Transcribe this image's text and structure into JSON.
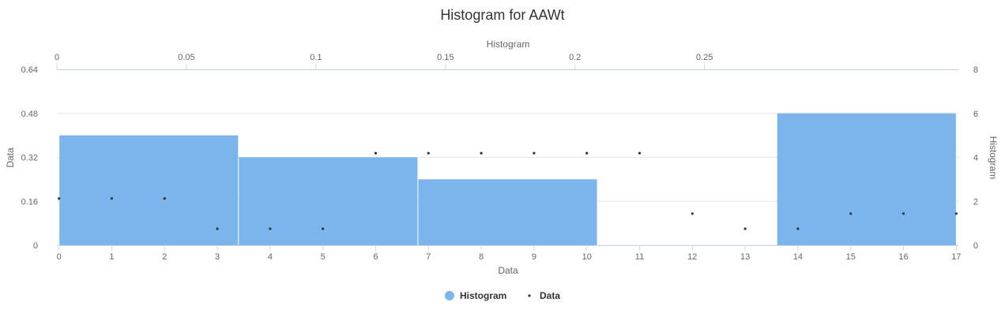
{
  "chart_data": {
    "type": "histogram",
    "title": "Histogram for AAWt",
    "legend": {
      "position": "bottom-center",
      "items": [
        {
          "name": "Histogram",
          "color": "#7cb5ec",
          "symbol": "circle"
        },
        {
          "name": "Data",
          "color": "#333333",
          "symbol": "dot"
        }
      ]
    },
    "axes": {
      "x_bottom": {
        "label": "Data",
        "range": [
          -0.04,
          17.04
        ],
        "ticks": [
          "0",
          "1",
          "2",
          "3",
          "4",
          "5",
          "6",
          "7",
          "8",
          "9",
          "10",
          "11",
          "12",
          "13",
          "14",
          "15",
          "16",
          "17"
        ]
      },
      "x_top": {
        "label": "Histogram",
        "range": [
          0,
          0.348
        ],
        "ticks": [
          "0",
          "0.05",
          "0.1",
          "0.15",
          "0.2",
          "0.25"
        ]
      },
      "y_left": {
        "label": "Data",
        "range": [
          0,
          0.64
        ],
        "ticks": [
          "0",
          "0.16",
          "0.32",
          "0.48",
          "0.64"
        ]
      },
      "y_right": {
        "label": "Histogram",
        "range": [
          0,
          8
        ],
        "ticks": [
          "0",
          "2",
          "4",
          "6",
          "8"
        ]
      }
    },
    "grid": true,
    "series": [
      {
        "name": "Histogram",
        "type": "column",
        "color": "#7cb5ec",
        "x_axis": "x_bottom",
        "y_axis": "y_right",
        "bins": [
          {
            "x0": 0.0,
            "x1": 3.4,
            "count": 5
          },
          {
            "x0": 3.4,
            "x1": 6.8,
            "count": 4
          },
          {
            "x0": 6.8,
            "x1": 10.2,
            "count": 3
          },
          {
            "x0": 10.2,
            "x1": 13.6,
            "count": 0
          },
          {
            "x0": 13.6,
            "x1": 17.0,
            "count": 6
          }
        ]
      },
      {
        "name": "Data",
        "type": "scatter",
        "color": "#333333",
        "x_axis": "x_bottom",
        "y_axis": "y_left",
        "points": [
          [
            0,
            0.17
          ],
          [
            1,
            0.17
          ],
          [
            2,
            0.17
          ],
          [
            3,
            0.06
          ],
          [
            4,
            0.06
          ],
          [
            5,
            0.06
          ],
          [
            6,
            0.335
          ],
          [
            7,
            0.335
          ],
          [
            8,
            0.335
          ],
          [
            9,
            0.335
          ],
          [
            10,
            0.335
          ],
          [
            11,
            0.335
          ],
          [
            12,
            0.115
          ],
          [
            13,
            0.06
          ],
          [
            14,
            0.06
          ],
          [
            15,
            0.115
          ],
          [
            16,
            0.115
          ],
          [
            17,
            0.115
          ]
        ]
      }
    ]
  }
}
